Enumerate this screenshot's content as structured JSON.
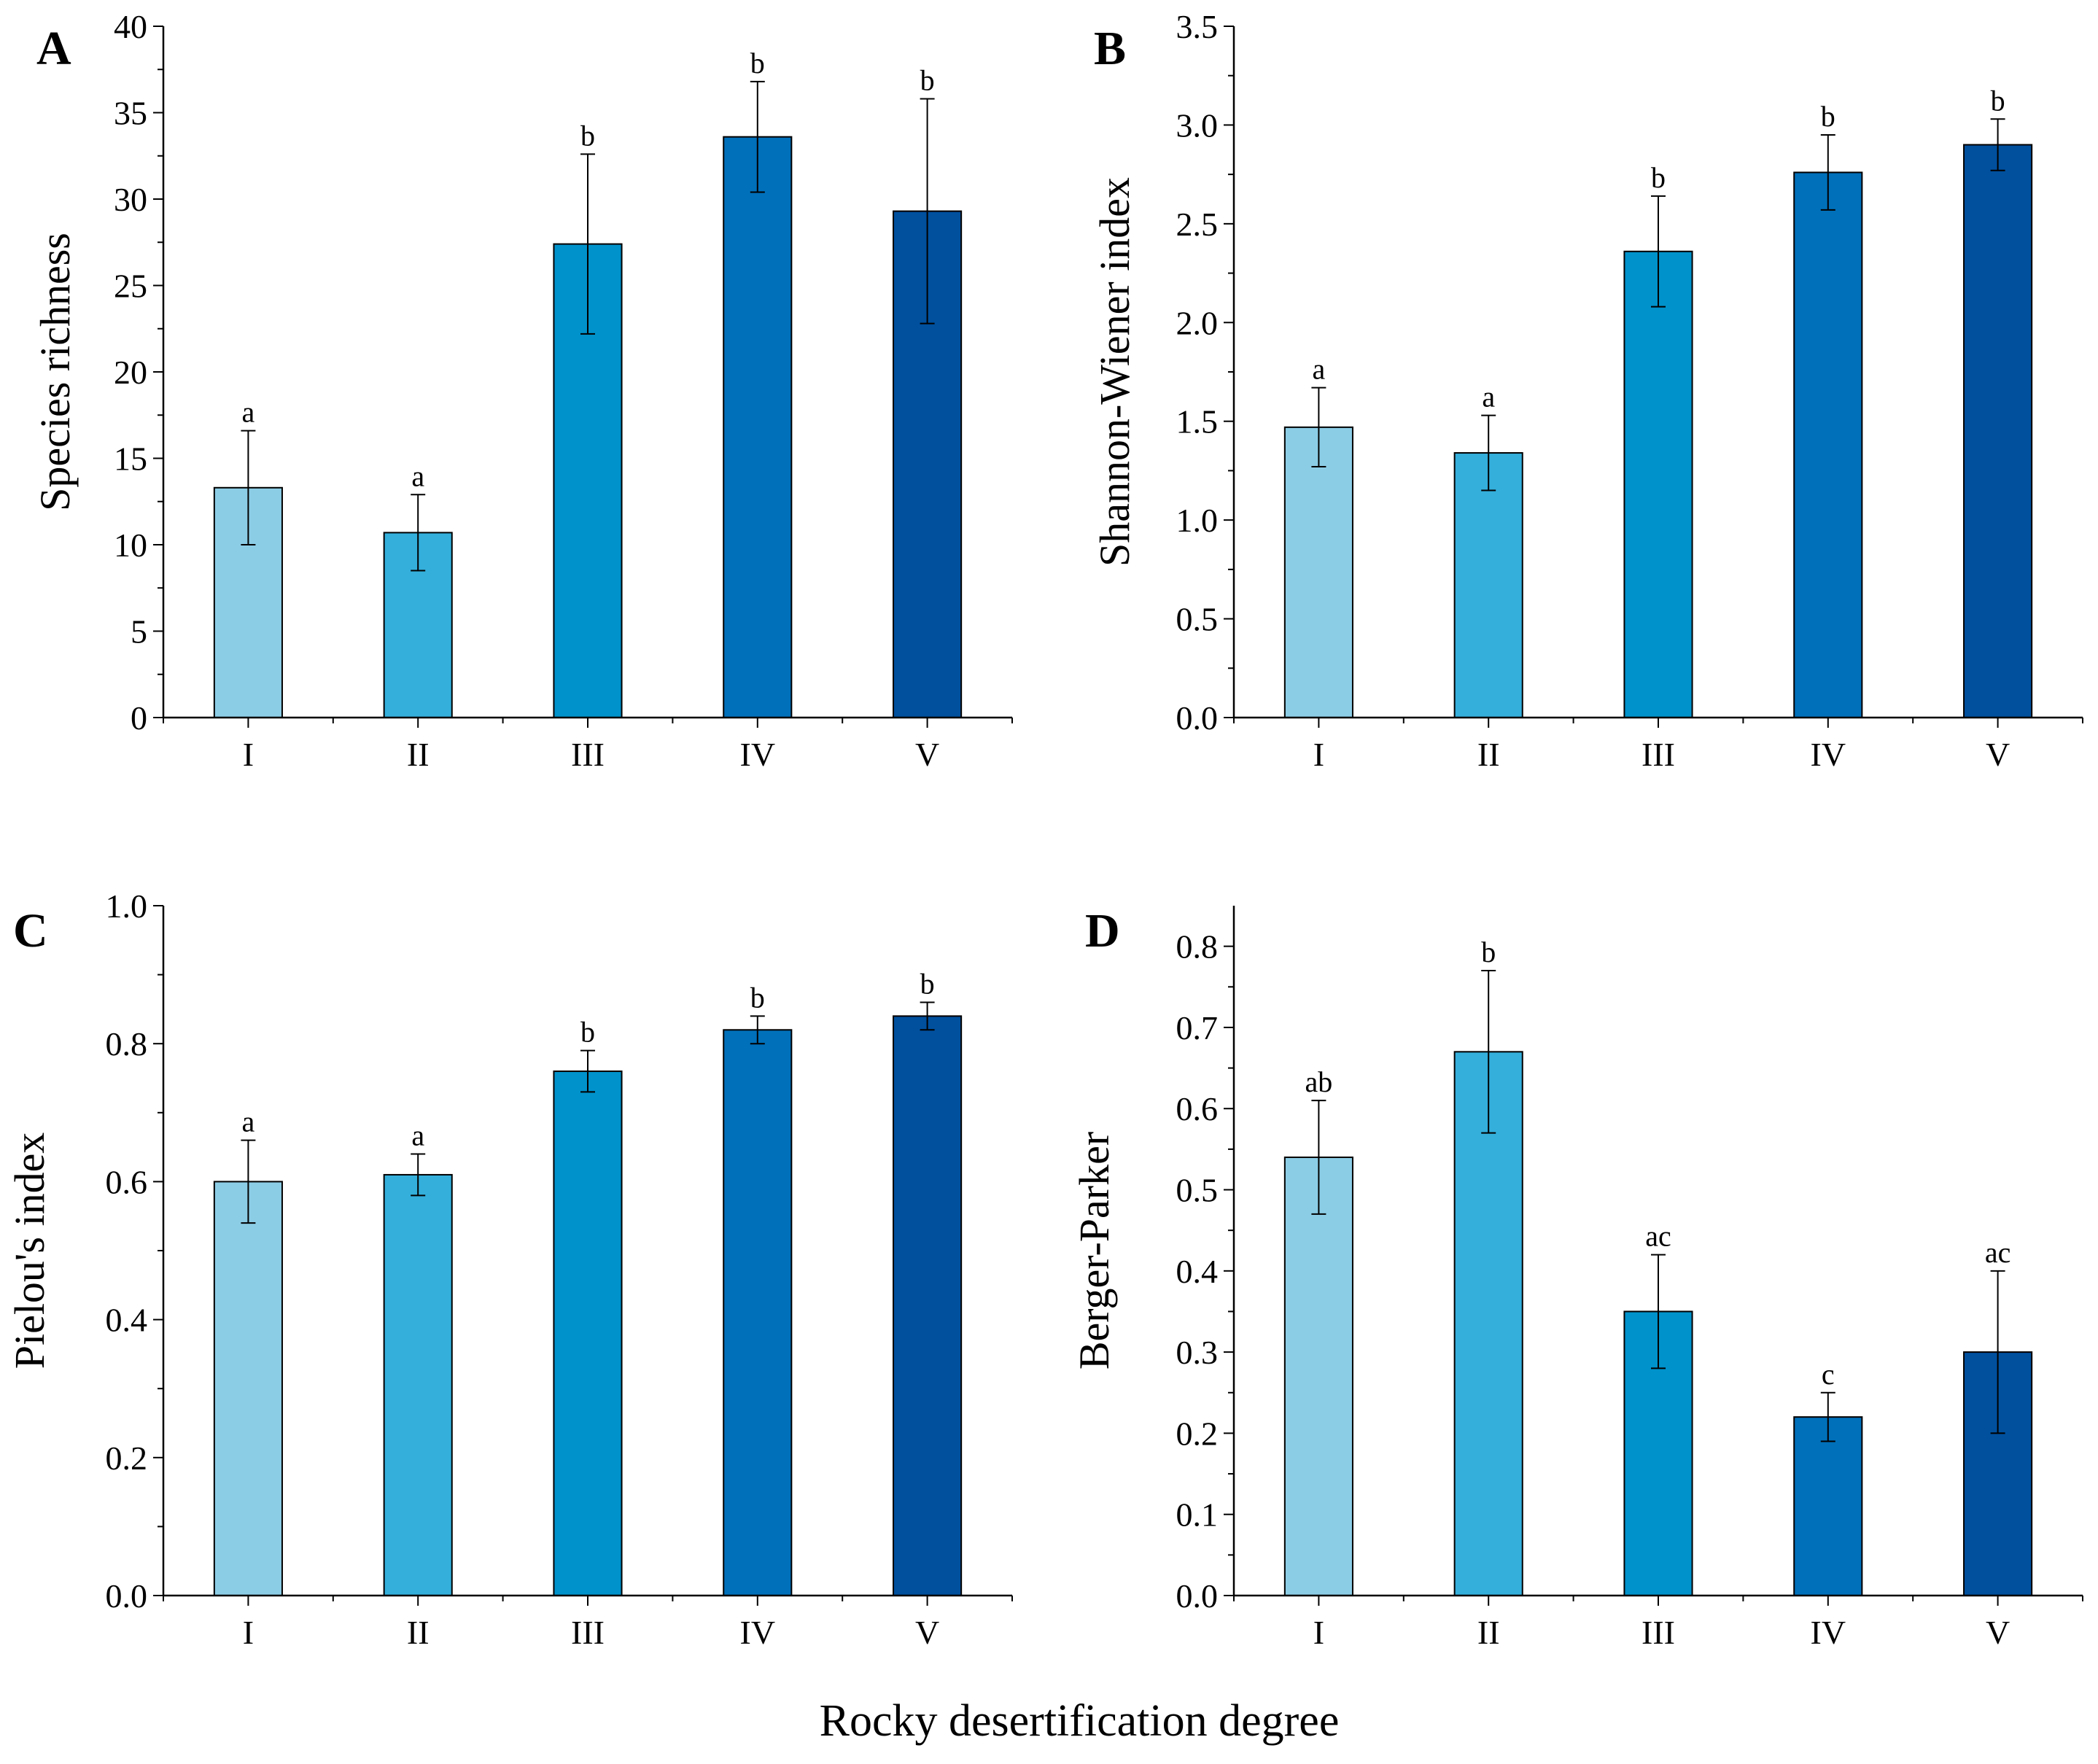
{
  "figure": {
    "xlabel": "Rocky desertification degree"
  },
  "chart_data": [
    {
      "panel": "A",
      "type": "bar",
      "categories": [
        "I",
        "II",
        "III",
        "IV",
        "V"
      ],
      "values": [
        13.3,
        10.7,
        27.4,
        33.6,
        29.3
      ],
      "errors": [
        3.3,
        2.2,
        5.2,
        3.2,
        6.5
      ],
      "significance": [
        "a",
        "a",
        "b",
        "b",
        "b"
      ],
      "ylabel": "Species richness",
      "ylim": [
        0,
        40
      ],
      "yticks": [
        0,
        5,
        10,
        15,
        20,
        25,
        30,
        35,
        40
      ],
      "ytick_labels": [
        "0",
        "5",
        "10",
        "15",
        "20",
        "25",
        "30",
        "35",
        "40"
      ],
      "colors": [
        "#8ccde6",
        "#34afdc",
        "#0092cb",
        "#0070ba",
        "#00509e"
      ]
    },
    {
      "panel": "B",
      "type": "bar",
      "categories": [
        "I",
        "II",
        "III",
        "IV",
        "V"
      ],
      "values": [
        1.47,
        1.34,
        2.36,
        2.76,
        2.9
      ],
      "errors": [
        0.2,
        0.19,
        0.28,
        0.19,
        0.13
      ],
      "significance": [
        "a",
        "a",
        "b",
        "b",
        "b"
      ],
      "ylabel": "Shannon-Wiener index",
      "ylim": [
        0,
        3.5
      ],
      "yticks": [
        0,
        0.5,
        1,
        1.5,
        2,
        2.5,
        3,
        3.5
      ],
      "ytick_labels": [
        "0.0",
        "0.5",
        "1.0",
        "1.5",
        "2.0",
        "2.5",
        "3.0",
        "3.5"
      ],
      "colors": [
        "#8ccde6",
        "#34afdc",
        "#0092cb",
        "#0070ba",
        "#00509e"
      ]
    },
    {
      "panel": "C",
      "type": "bar",
      "categories": [
        "I",
        "II",
        "III",
        "IV",
        "V"
      ],
      "values": [
        0.6,
        0.61,
        0.76,
        0.82,
        0.84
      ],
      "errors": [
        0.06,
        0.03,
        0.03,
        0.02,
        0.02
      ],
      "significance": [
        "a",
        "a",
        "b",
        "b",
        "b"
      ],
      "ylabel": "Pielou's index",
      "ylim": [
        0,
        1
      ],
      "yticks": [
        0,
        0.2,
        0.4,
        0.6,
        0.8,
        1
      ],
      "ytick_labels": [
        "0.0",
        "0.2",
        "0.4",
        "0.6",
        "0.8",
        "1.0"
      ],
      "colors": [
        "#8ccde6",
        "#34afdc",
        "#0092cb",
        "#0070ba",
        "#00509e"
      ]
    },
    {
      "panel": "D",
      "type": "bar",
      "categories": [
        "I",
        "II",
        "III",
        "IV",
        "V"
      ],
      "values": [
        0.54,
        0.67,
        0.35,
        0.22,
        0.3
      ],
      "errors": [
        0.07,
        0.1,
        0.07,
        0.03,
        0.1
      ],
      "significance": [
        "ab",
        "b",
        "ac",
        "c",
        "ac"
      ],
      "ylabel": "Berger-Parker",
      "ylim": [
        0,
        0.85
      ],
      "yticks": [
        0,
        0.1,
        0.2,
        0.3,
        0.4,
        0.5,
        0.6,
        0.7,
        0.8
      ],
      "ytick_labels": [
        "0.0",
        "0.1",
        "0.2",
        "0.3",
        "0.4",
        "0.5",
        "0.6",
        "0.7",
        "0.8"
      ],
      "colors": [
        "#8ccde6",
        "#34afdc",
        "#0092cb",
        "#0070ba",
        "#00509e"
      ]
    }
  ]
}
